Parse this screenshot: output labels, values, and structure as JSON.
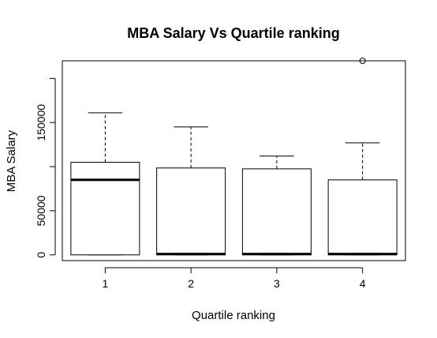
{
  "chart_data": {
    "type": "boxplot",
    "title": "MBA Salary Vs Quartile ranking",
    "xlabel": "Quartile ranking",
    "ylabel": "MBA Salary",
    "categories": [
      "1",
      "2",
      "3",
      "4"
    ],
    "y_ticks": [
      {
        "value": 0,
        "label": "0"
      },
      {
        "value": 50000,
        "label": "50000"
      },
      {
        "value": 150000,
        "label": "150000"
      }
    ],
    "ylim": [
      -6500,
      220000
    ],
    "boxes": [
      {
        "category": "1",
        "min": 0,
        "q1": 0,
        "median": 85000,
        "q3": 105000,
        "max": 161000,
        "outliers": []
      },
      {
        "category": "2",
        "min": 0,
        "q1": 0,
        "median": 1000,
        "q3": 98500,
        "max": 145000,
        "outliers": []
      },
      {
        "category": "3",
        "min": 0,
        "q1": 0,
        "median": 1000,
        "q3": 97500,
        "max": 112000,
        "outliers": []
      },
      {
        "category": "4",
        "min": 0,
        "q1": 0,
        "median": 1000,
        "q3": 85000,
        "max": 127000,
        "outliers": [
          220000
        ]
      }
    ]
  }
}
